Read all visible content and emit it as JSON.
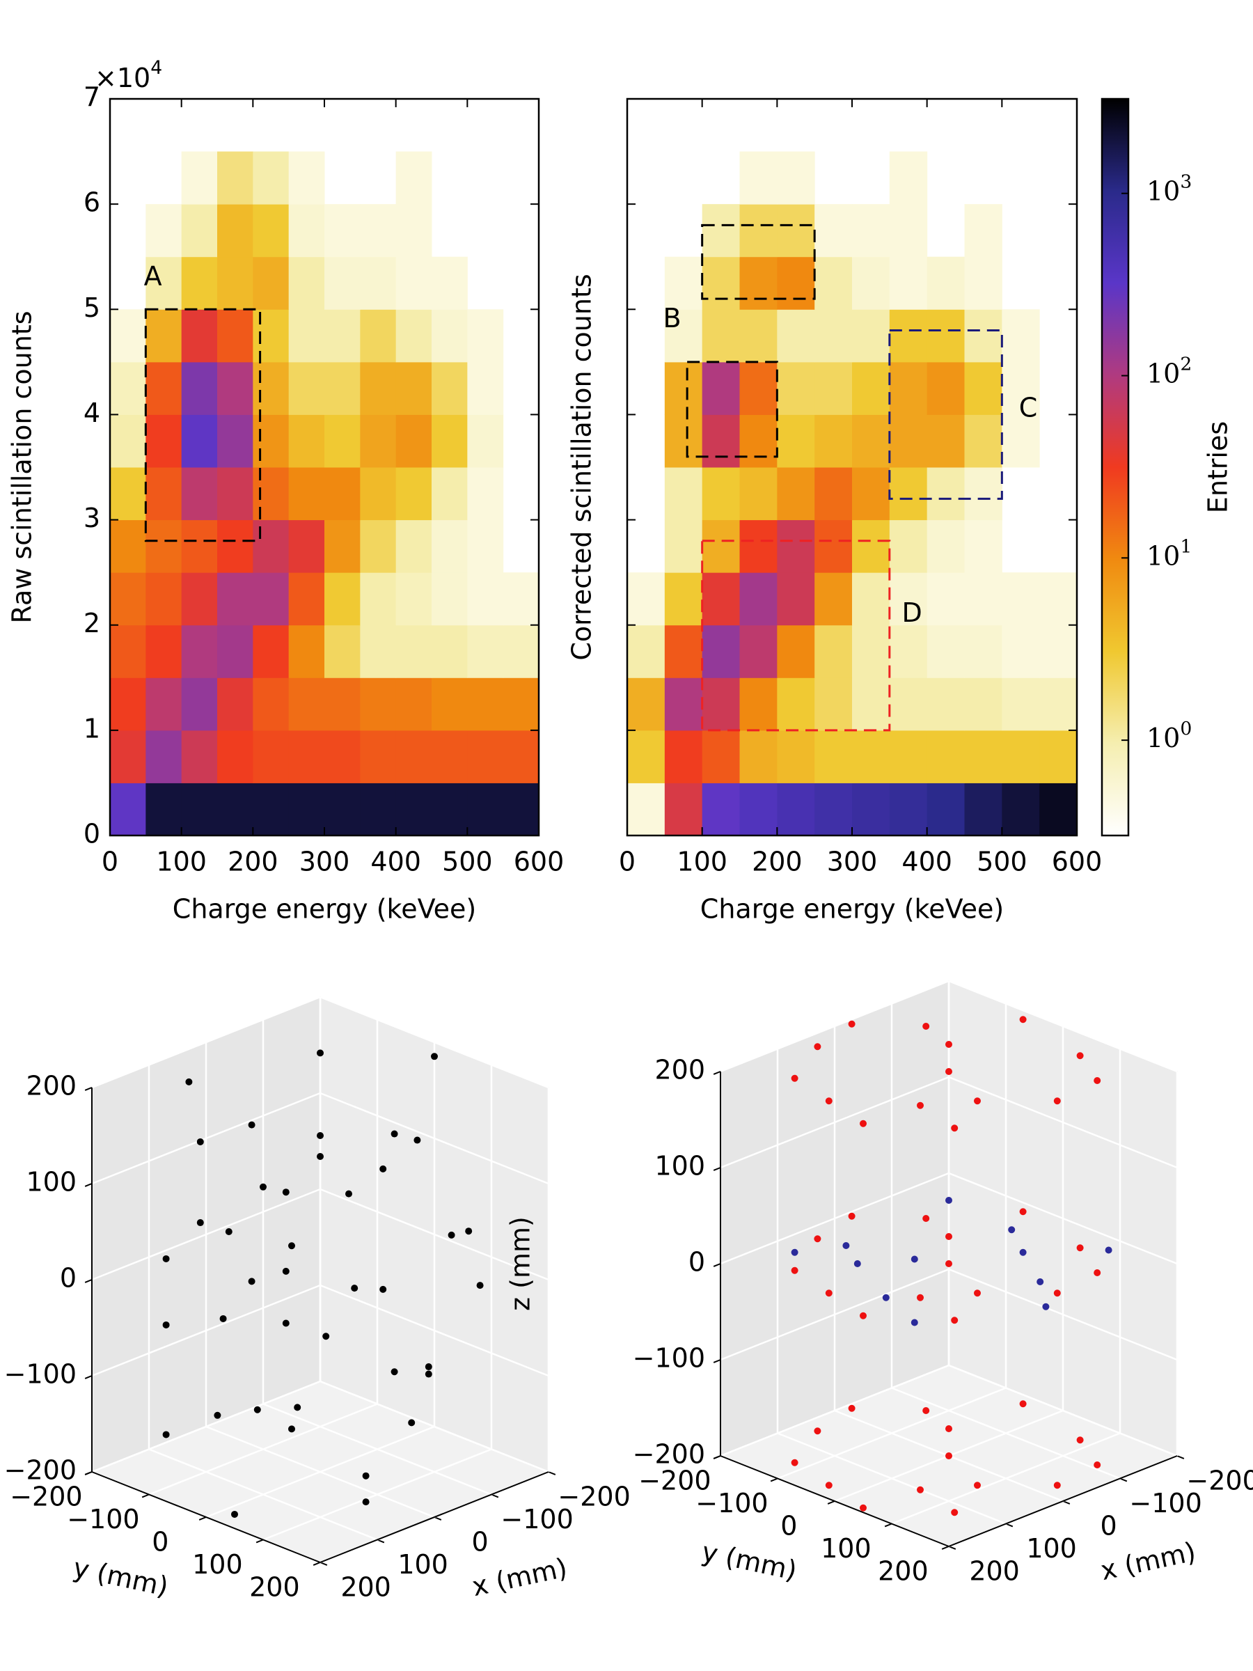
{
  "chart_data": [
    {
      "type": "heatmap",
      "xlabel": "Charge energy (keVee)",
      "ylabel": "Raw scintillation counts",
      "y_offset_label": "×10^4",
      "xlim": [
        0,
        600
      ],
      "ylim": [
        0,
        7
      ],
      "xticks": [
        0,
        100,
        200,
        300,
        400,
        500,
        600
      ],
      "yticks": [
        0,
        1,
        2,
        3,
        4,
        5,
        6,
        7
      ],
      "xbins": [
        0,
        50,
        100,
        150,
        200,
        250,
        300,
        350,
        400,
        450,
        500,
        550,
        600
      ],
      "ybins": [
        0,
        0.5,
        1,
        1.5,
        2,
        2.5,
        3,
        3.5,
        4,
        4.5,
        5,
        5.5,
        6,
        6.5,
        7
      ],
      "values": [
        [
          300,
          2000,
          2000,
          2000,
          2000,
          2000,
          2000,
          2000,
          2000,
          2000,
          2000,
          2000
        ],
        [
          40,
          150,
          60,
          30,
          25,
          25,
          25,
          20,
          20,
          20,
          20,
          20
        ],
        [
          30,
          80,
          150,
          40,
          20,
          15,
          15,
          12,
          12,
          10,
          10,
          10
        ],
        [
          20,
          30,
          100,
          120,
          30,
          10,
          2,
          1,
          1,
          1,
          0.8,
          0.8
        ],
        [
          15,
          20,
          40,
          100,
          100,
          20,
          3,
          1,
          0.8,
          0.6,
          0.5,
          0.5
        ],
        [
          10,
          15,
          20,
          30,
          60,
          40,
          8,
          2,
          1,
          0.6,
          0.5,
          null
        ],
        [
          3,
          20,
          80,
          60,
          15,
          10,
          10,
          4,
          3,
          1,
          0.5,
          null
        ],
        [
          1,
          30,
          300,
          150,
          8,
          4,
          3,
          6,
          8,
          3,
          0.6,
          null
        ],
        [
          0.8,
          20,
          200,
          100,
          5,
          2,
          2,
          5,
          5,
          2,
          0.5,
          null
        ],
        [
          0.5,
          5,
          40,
          20,
          3,
          1,
          1,
          2,
          1,
          0.6,
          0.5,
          null
        ],
        [
          null,
          1,
          3,
          4,
          5,
          1,
          0.6,
          0.6,
          0.5,
          0.5,
          null,
          null
        ],
        [
          null,
          0.5,
          1,
          4,
          3,
          0.6,
          0.5,
          0.5,
          0.5,
          null,
          null,
          null
        ],
        [
          null,
          null,
          0.5,
          1.5,
          1,
          0.5,
          null,
          null,
          0.5,
          null,
          null,
          null
        ],
        [
          null,
          null,
          null,
          null,
          null,
          null,
          null,
          null,
          null,
          null,
          null,
          null
        ]
      ],
      "annotations": [
        {
          "text": "A",
          "color": "#000000",
          "boxes": [
            [
              50,
              210,
              2.8,
              5.0
            ]
          ],
          "text_pos": [
            60,
            5.3
          ]
        }
      ]
    },
    {
      "type": "heatmap",
      "xlabel": "Charge energy (keVee)",
      "ylabel": "Corrected scintillation counts",
      "show_ytick_labels": false,
      "xlim": [
        0,
        600
      ],
      "ylim": [
        0,
        7
      ],
      "xticks": [
        0,
        100,
        200,
        300,
        400,
        500,
        600
      ],
      "yticks": [
        0,
        1,
        2,
        3,
        4,
        5,
        6,
        7
      ],
      "xbins": [
        0,
        50,
        100,
        150,
        200,
        250,
        300,
        350,
        400,
        450,
        500,
        550,
        600
      ],
      "ybins": [
        0,
        0.5,
        1,
        1.5,
        2,
        2.5,
        3,
        3.5,
        4,
        4.5,
        5,
        5.5,
        6,
        6.5,
        7
      ],
      "values": [
        [
          0.5,
          50,
          300,
          400,
          500,
          600,
          700,
          800,
          1000,
          1500,
          2000,
          2500
        ],
        [
          3,
          30,
          20,
          5,
          4,
          3,
          3,
          3,
          3,
          3,
          3,
          3
        ],
        [
          5,
          100,
          60,
          10,
          3,
          2,
          1,
          1,
          1,
          1,
          0.8,
          0.8
        ],
        [
          1,
          20,
          150,
          80,
          10,
          2,
          1,
          0.8,
          0.6,
          0.6,
          0.5,
          0.5
        ],
        [
          0.5,
          3,
          40,
          120,
          60,
          8,
          1,
          0.6,
          0.5,
          0.5,
          0.5,
          0.5
        ],
        [
          null,
          1,
          5,
          30,
          60,
          20,
          3,
          1,
          0.6,
          0.5,
          null,
          null
        ],
        [
          null,
          1,
          3,
          4,
          8,
          15,
          8,
          3,
          1,
          0.6,
          null,
          null
        ],
        [
          null,
          5,
          60,
          10,
          3,
          4,
          5,
          6,
          6,
          2,
          0.5,
          null
        ],
        [
          null,
          5,
          100,
          15,
          2,
          2,
          3,
          6,
          8,
          3,
          0.5,
          null
        ],
        [
          null,
          0.6,
          2,
          2,
          1,
          1,
          1,
          3,
          3,
          1,
          0.5,
          null
        ],
        [
          null,
          0.5,
          2,
          8,
          10,
          1,
          0.6,
          0.5,
          0.6,
          0.5,
          null,
          null
        ],
        [
          null,
          null,
          1,
          2,
          2,
          0.5,
          0.5,
          0.5,
          null,
          0.5,
          null,
          null
        ],
        [
          null,
          null,
          null,
          0.5,
          0.5,
          null,
          null,
          0.5,
          null,
          null,
          null,
          null
        ],
        [
          null,
          null,
          null,
          null,
          null,
          null,
          null,
          null,
          null,
          null,
          null,
          null
        ]
      ],
      "annotations": [
        {
          "text": "B",
          "color": "#000000",
          "boxes": [
            [
              100,
              250,
              5.1,
              5.8
            ],
            [
              80,
              200,
              3.6,
              4.5
            ]
          ],
          "text_pos": [
            60,
            4.9
          ]
        },
        {
          "text": "C",
          "color": "#1a1a7a",
          "boxes": [
            [
              350,
              500,
              3.2,
              4.8
            ]
          ],
          "text_pos": [
            535,
            4.05
          ]
        },
        {
          "text": "D",
          "color": "#ee2222",
          "boxes": [
            [
              100,
              350,
              1.0,
              2.8
            ]
          ],
          "text_pos": [
            380,
            2.1
          ]
        }
      ],
      "colorbar": {
        "label": "Entries",
        "log": true,
        "clim": [
          0.3,
          3300
        ],
        "ticks": [
          {
            "value": 1,
            "label": "10^0"
          },
          {
            "value": 10,
            "label": "10^1"
          },
          {
            "value": 100,
            "label": "10^2"
          },
          {
            "value": 1000,
            "label": "10^3"
          }
        ],
        "colormap": [
          "#ffffff",
          "#f5eeb0",
          "#f0c830",
          "#f08a10",
          "#f03a20",
          "#b03a80",
          "#5a36c8",
          "#2a2a8a",
          "#000000"
        ]
      }
    },
    {
      "type": "scatter3d",
      "xlabel": "x (mm)",
      "ylabel": "y (mm)",
      "zlabel": "z (mm)",
      "xlim": [
        -200,
        200
      ],
      "ylim": [
        -200,
        200
      ],
      "zlim": [
        -200,
        200
      ],
      "xticks": [
        {
          "value": -200,
          "label": "−200"
        },
        {
          "value": -100,
          "label": "−100"
        },
        0,
        100,
        200
      ],
      "yticks": [
        {
          "value": -200,
          "label": "−200"
        },
        {
          "value": -100,
          "label": "−100"
        },
        0,
        100,
        200
      ],
      "zticks": [
        {
          "value": -200,
          "label": "−200"
        },
        {
          "value": -100,
          "label": "−100"
        },
        0,
        100,
        200
      ],
      "series": [
        {
          "color": "#000000",
          "x": [
            0,
            100,
            -150,
            60,
            -80,
            170,
            -30,
            120,
            -180,
            40,
            -110,
            150,
            -60,
            190,
            -20,
            80,
            -140,
            10,
            130,
            -170,
            50,
            -90,
            160,
            -40,
            110,
            -130,
            20,
            -190,
            90,
            -70,
            140,
            -120,
            30,
            -10,
            70,
            -160,
            180,
            -50,
            100,
            0
          ],
          "y": [
            0,
            50,
            80,
            -170,
            -120,
            -40,
            160,
            130,
            -50,
            90,
            150,
            -120,
            -60,
            40,
            -190,
            -80,
            -140,
            180,
            20,
            110,
            -130,
            40,
            100,
            120,
            -160,
            -20,
            -40,
            10,
            170,
            -170,
            -70,
            70,
            140,
            70,
            10,
            -100,
            -90,
            -100,
            -20,
            -120
          ],
          "z": [
            150,
            -120,
            30,
            180,
            -180,
            90,
            -60,
            0,
            -150,
            120,
            60,
            -40,
            100,
            -190,
            -90,
            50,
            170,
            190,
            -100,
            -20,
            -160,
            140,
            70,
            -130,
            10,
            80,
            -50,
            190,
            -170,
            40,
            160,
            -110,
            30,
            -190,
            110,
            -70,
            -140,
            0,
            180,
            -30
          ]
        }
      ]
    },
    {
      "type": "scatter3d",
      "xlabel": "x (mm)",
      "ylabel": "y (mm)",
      "zlabel": "z (mm)",
      "xlim": [
        -200,
        200
      ],
      "ylim": [
        -200,
        200
      ],
      "zlim": [
        -200,
        200
      ],
      "xticks": [
        {
          "value": -200,
          "label": "−200"
        },
        {
          "value": -100,
          "label": "−100"
        },
        0,
        100,
        200
      ],
      "yticks": [
        {
          "value": -200,
          "label": "−200"
        },
        {
          "value": -100,
          "label": "−100"
        },
        0,
        100,
        200
      ],
      "zticks": [
        {
          "value": -200,
          "label": "−200"
        },
        {
          "value": -100,
          "label": "−100"
        },
        0,
        100,
        200
      ],
      "series": [
        {
          "color": "#ee1111",
          "x": [
            0,
            100,
            -150,
            60,
            -80,
            170,
            -30,
            120,
            -180,
            40,
            -110,
            150,
            -60,
            190,
            -20,
            0,
            100,
            -150,
            60,
            -80,
            170,
            -30,
            120,
            -180,
            40,
            -110,
            150,
            -60,
            190,
            -20,
            0,
            100,
            -150,
            60,
            -80,
            170,
            -30,
            120,
            -180,
            40,
            -110,
            150,
            -60,
            190,
            -20
          ],
          "y": [
            0,
            50,
            80,
            -170,
            -120,
            -40,
            160,
            130,
            -50,
            90,
            150,
            -120,
            -60,
            40,
            -190,
            0,
            50,
            80,
            -170,
            -120,
            -40,
            160,
            130,
            -50,
            90,
            150,
            -120,
            -60,
            40,
            -190,
            0,
            50,
            80,
            -170,
            -120,
            -40,
            160,
            130,
            -50,
            90,
            150,
            -120,
            -60,
            40,
            -190
          ],
          "z": [
            200,
            200,
            200,
            200,
            200,
            200,
            200,
            200,
            200,
            200,
            200,
            200,
            200,
            200,
            200,
            0,
            0,
            0,
            0,
            0,
            0,
            0,
            0,
            0,
            0,
            0,
            0,
            0,
            0,
            0,
            -200,
            -200,
            -200,
            -200,
            -200,
            -200,
            -200,
            -200,
            -200,
            -200,
            -200,
            -200,
            -200,
            -200,
            -200
          ]
        },
        {
          "color": "#2a2a9a",
          "x": [
            80,
            -140,
            10,
            130,
            -170,
            50,
            -90,
            160,
            -40,
            110,
            -130,
            20
          ],
          "y": [
            -80,
            -140,
            180,
            20,
            110,
            -130,
            40,
            100,
            120,
            -160,
            -20,
            -40
          ],
          "z": [
            0,
            0,
            0,
            0,
            0,
            0,
            0,
            0,
            0,
            0,
            0,
            0
          ]
        }
      ]
    }
  ]
}
